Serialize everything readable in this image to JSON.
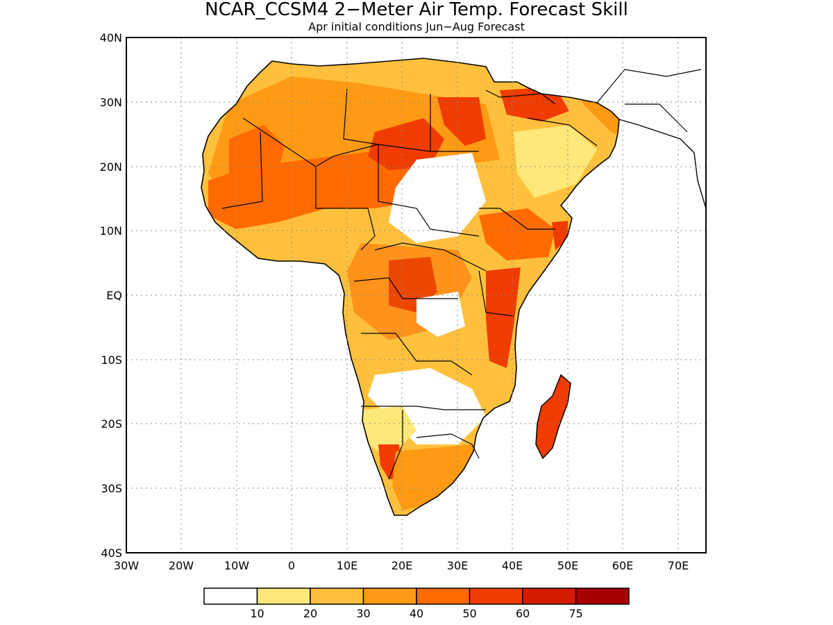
{
  "title": "NCAR_CCSM4 2−Meter Air Temp. Forecast Skill",
  "subtitle": "Apr initial conditions  Jun−Aug Forecast",
  "map": {
    "region": "Africa and Arabian Peninsula",
    "lon_range": [
      -30,
      75
    ],
    "lat_range": [
      -40,
      40
    ],
    "lat_ticks": [
      "40N",
      "30N",
      "20N",
      "10N",
      "EQ",
      "10S",
      "20S",
      "30S",
      "40S"
    ],
    "lon_ticks": [
      "30W",
      "20W",
      "10W",
      "0",
      "10E",
      "20E",
      "30E",
      "40E",
      "50E",
      "60E",
      "70E"
    ],
    "grid": "dotted"
  },
  "colorbar": {
    "labels": [
      "10",
      "20",
      "30",
      "40",
      "50",
      "60",
      "75"
    ],
    "colors": [
      "#ffffff",
      "#ffe87a",
      "#ffc13d",
      "#ff9a14",
      "#ff6b00",
      "#f03c00",
      "#d41b00",
      "#a80000"
    ]
  }
}
